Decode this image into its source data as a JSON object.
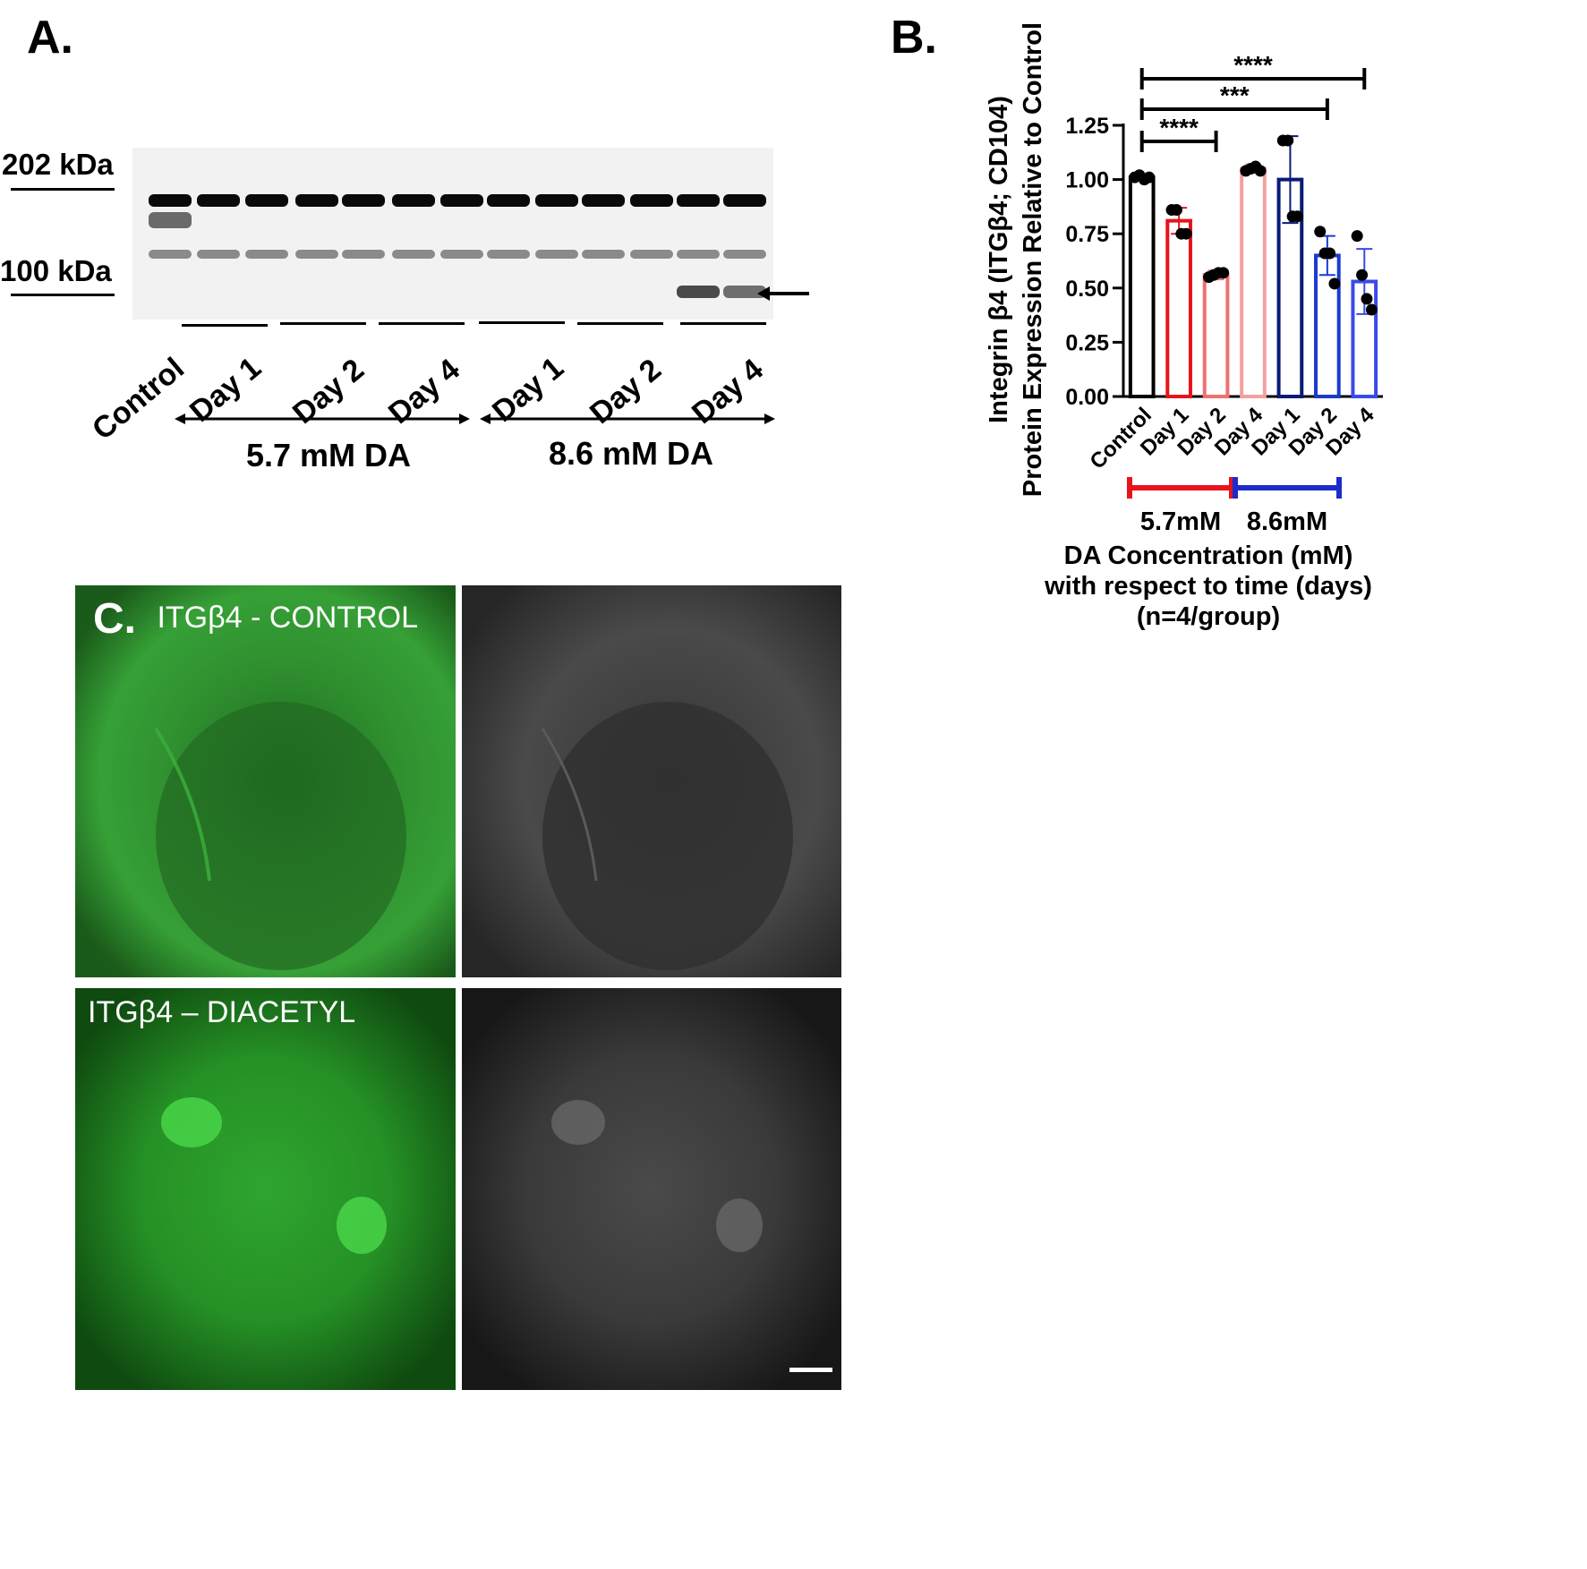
{
  "panel_a": {
    "letter": "A.",
    "mw_markers": [
      "202 kDa",
      "100 kDa"
    ],
    "lanes": [
      "Control",
      "Day 1",
      "Day 2",
      "Day 4",
      "Day 1",
      "Day 2",
      "Day 4"
    ],
    "groups": [
      "5.7 mM DA",
      "8.6 mM DA"
    ]
  },
  "panel_b": {
    "letter": "B.",
    "chart_data": {
      "type": "bar",
      "categories": [
        "Control",
        "Day 1",
        "Day 2",
        "Day 4",
        "Day 1",
        "Day 2",
        "Day 4"
      ],
      "values": [
        1.01,
        0.81,
        0.56,
        1.05,
        1.0,
        0.65,
        0.53
      ],
      "errors": [
        0.01,
        0.06,
        0.02,
        0.02,
        0.2,
        0.09,
        0.15
      ],
      "points": [
        [
          1.01,
          1.02,
          1.0,
          1.01
        ],
        [
          0.86,
          0.86,
          0.75,
          0.75
        ],
        [
          0.55,
          0.56,
          0.57,
          0.57
        ],
        [
          1.04,
          1.05,
          1.06,
          1.04
        ],
        [
          1.18,
          1.18,
          0.83,
          0.83
        ],
        [
          0.76,
          0.66,
          0.66,
          0.52
        ],
        [
          0.74,
          0.56,
          0.45,
          0.4
        ]
      ],
      "colors": [
        "#000000",
        "#e8141b",
        "#f07070",
        "#f4a0a0",
        "#0a1a78",
        "#1a3ad0",
        "#3a4ae8"
      ],
      "ylim": [
        0,
        1.25
      ],
      "yticks": [
        "0.00",
        "0.25",
        "0.50",
        "0.75",
        "1.00",
        "1.25"
      ],
      "ylabel_lines": [
        "Integrin β4 (ITGβ4; CD104)",
        "Protein Expression Relative to Control"
      ],
      "significance": [
        {
          "from": 0,
          "to": 2,
          "label": "****"
        },
        {
          "from": 0,
          "to": 5,
          "label": "***"
        },
        {
          "from": 0,
          "to": 6,
          "label": "****"
        }
      ],
      "groups": [
        {
          "label": "5.7mM",
          "color": "#e8141b"
        },
        {
          "label": "8.6mM",
          "color": "#1d2bc9"
        }
      ],
      "xlabel_lines": [
        "DA Concentration (mM)",
        "with respect to time (days)",
        "(n=4/group)"
      ]
    }
  },
  "panel_c": {
    "letter": "C.",
    "labels": [
      "ITGβ4 - CONTROL",
      "ITGβ4 – DIACETYL"
    ]
  }
}
